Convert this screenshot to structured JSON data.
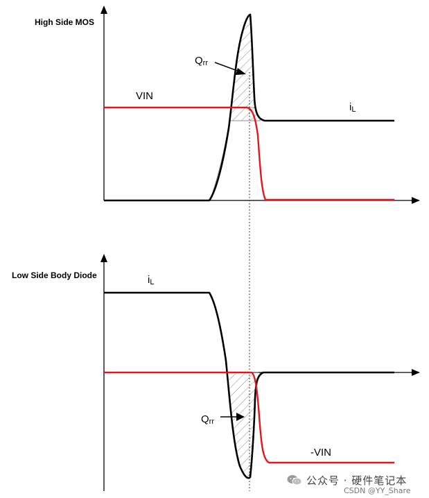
{
  "top_panel": {
    "title": "High Side MOS",
    "labels": {
      "vin": "VIN",
      "il_main": "i",
      "il_sub": "L",
      "qrr_main": "Q",
      "qrr_sub": "rr"
    }
  },
  "bottom_panel": {
    "title": "Low Side Body Diode",
    "labels": {
      "il_main": "i",
      "il_sub": "L",
      "neg_vin": "-VIN",
      "qrr_main": "Q",
      "qrr_sub": "rr"
    }
  },
  "colors": {
    "current_trace": "#000000",
    "voltage_trace": "#e8141c",
    "axes": "#000000",
    "hatch": "#6a6a6a",
    "marker_line": "#000000"
  },
  "watermark": {
    "icon": "wechat-icon",
    "line1": "公众号 · 硬件笔记本",
    "line2": "CSDN @YY_Share"
  }
}
